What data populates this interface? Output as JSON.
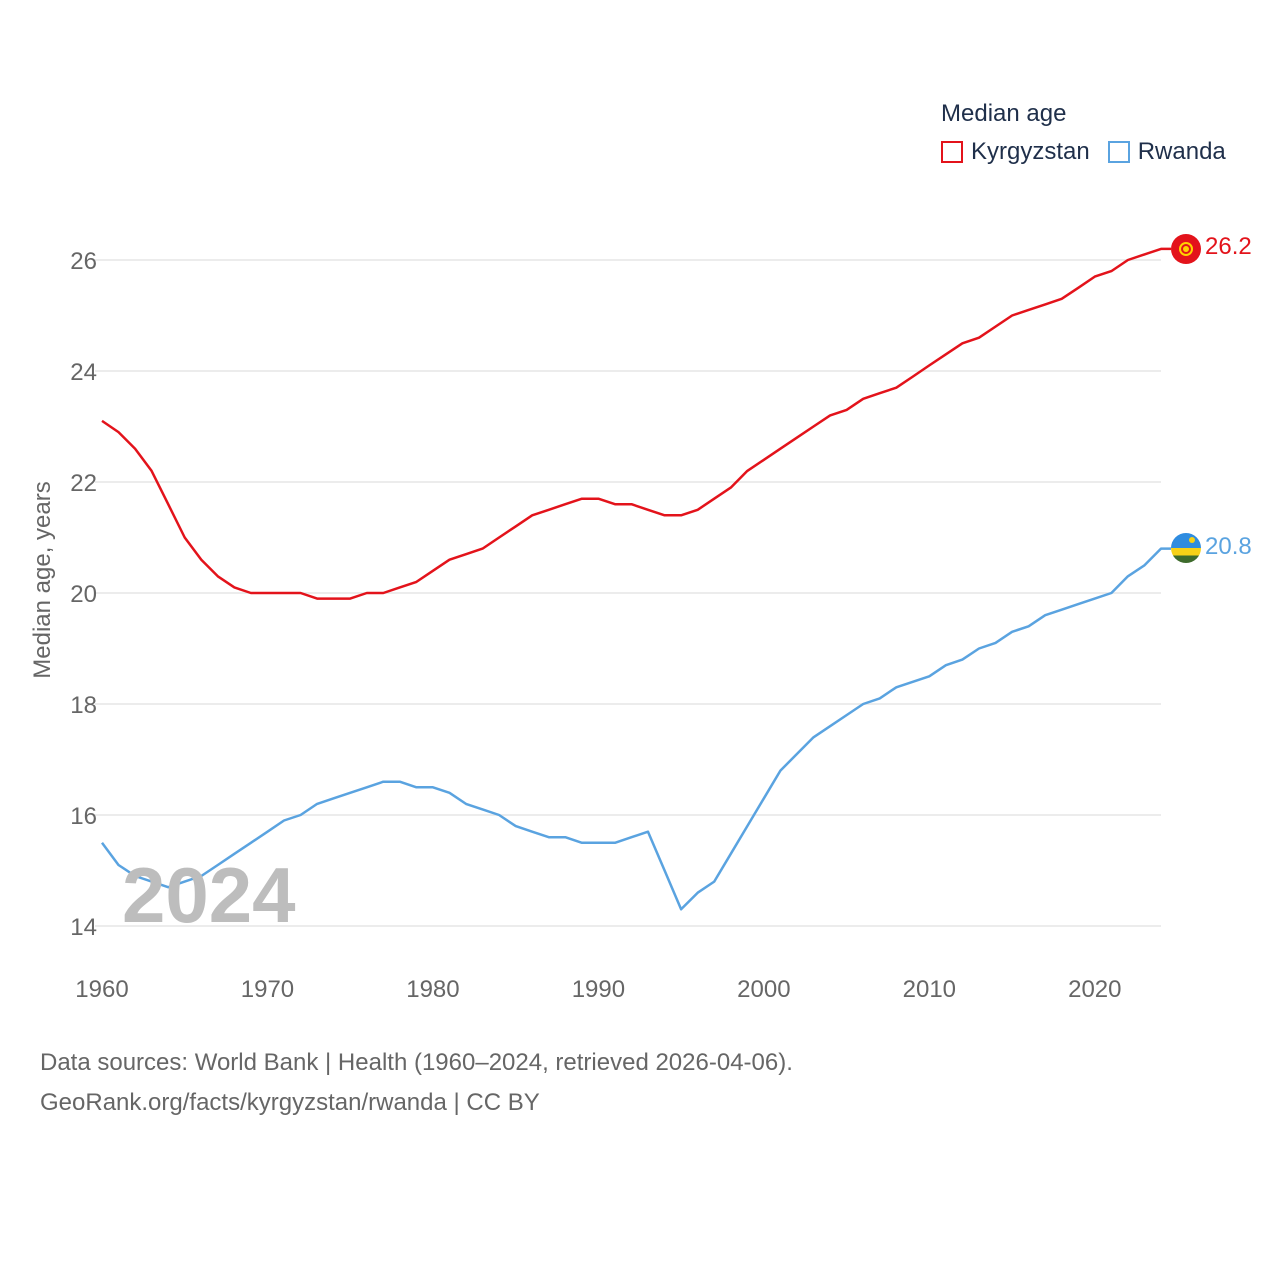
{
  "legend": {
    "title": "Median age",
    "items": [
      "Kyrgyzstan",
      "Rwanda"
    ]
  },
  "watermark_year": "2024",
  "footer": {
    "line1": "Data sources: World Bank | Health (1960–2024, retrieved 2026-04-06).",
    "line2": "GeoRank.org/facts/kyrgyzstan/rwanda | CC BY"
  },
  "chart_data": {
    "type": "line",
    "title": "Median age",
    "xlabel": "",
    "ylabel": "Median age, years",
    "xlim": [
      1960,
      2024
    ],
    "ylim": [
      13.5,
      27
    ],
    "x_ticks": [
      "1960",
      "1970",
      "1980",
      "1990",
      "2000",
      "2010",
      "2020"
    ],
    "y_ticks": [
      "14",
      "16",
      "18",
      "20",
      "22",
      "24",
      "26"
    ],
    "grid": true,
    "x": [
      1960,
      1961,
      1962,
      1963,
      1964,
      1965,
      1966,
      1967,
      1968,
      1969,
      1970,
      1971,
      1972,
      1973,
      1974,
      1975,
      1976,
      1977,
      1978,
      1979,
      1980,
      1981,
      1982,
      1983,
      1984,
      1985,
      1986,
      1987,
      1988,
      1989,
      1990,
      1991,
      1992,
      1993,
      1994,
      1995,
      1996,
      1997,
      1998,
      1999,
      2000,
      2001,
      2002,
      2003,
      2004,
      2005,
      2006,
      2007,
      2008,
      2009,
      2010,
      2011,
      2012,
      2013,
      2014,
      2015,
      2016,
      2017,
      2018,
      2019,
      2020,
      2021,
      2022,
      2023,
      2024
    ],
    "series": [
      {
        "name": "Kyrgyzstan",
        "color": "#e3131b",
        "end_label": "26.2",
        "values": [
          23.1,
          22.9,
          22.6,
          22.2,
          21.6,
          21.0,
          20.6,
          20.3,
          20.1,
          20.0,
          20.0,
          20.0,
          20.0,
          19.9,
          19.9,
          19.9,
          20.0,
          20.0,
          20.1,
          20.2,
          20.4,
          20.6,
          20.7,
          20.8,
          21.0,
          21.2,
          21.4,
          21.5,
          21.6,
          21.7,
          21.7,
          21.6,
          21.6,
          21.5,
          21.4,
          21.4,
          21.5,
          21.7,
          21.9,
          22.2,
          22.4,
          22.6,
          22.8,
          23.0,
          23.2,
          23.3,
          23.5,
          23.6,
          23.7,
          23.9,
          24.1,
          24.3,
          24.5,
          24.6,
          24.8,
          25.0,
          25.1,
          25.2,
          25.3,
          25.5,
          25.7,
          25.8,
          26.0,
          26.1,
          26.2
        ]
      },
      {
        "name": "Rwanda",
        "color": "#5aa3e0",
        "end_label": "20.8",
        "values": [
          15.5,
          15.1,
          14.9,
          14.8,
          14.7,
          14.8,
          14.9,
          15.1,
          15.3,
          15.5,
          15.7,
          15.9,
          16.0,
          16.2,
          16.3,
          16.4,
          16.5,
          16.6,
          16.6,
          16.5,
          16.5,
          16.4,
          16.2,
          16.1,
          16.0,
          15.8,
          15.7,
          15.6,
          15.6,
          15.5,
          15.5,
          15.5,
          15.6,
          15.7,
          15.0,
          14.3,
          14.6,
          14.8,
          15.3,
          15.8,
          16.3,
          16.8,
          17.1,
          17.4,
          17.6,
          17.8,
          18.0,
          18.1,
          18.3,
          18.4,
          18.5,
          18.7,
          18.8,
          19.0,
          19.1,
          19.3,
          19.4,
          19.6,
          19.7,
          19.8,
          19.9,
          20.0,
          20.3,
          20.5,
          20.8
        ]
      }
    ]
  }
}
